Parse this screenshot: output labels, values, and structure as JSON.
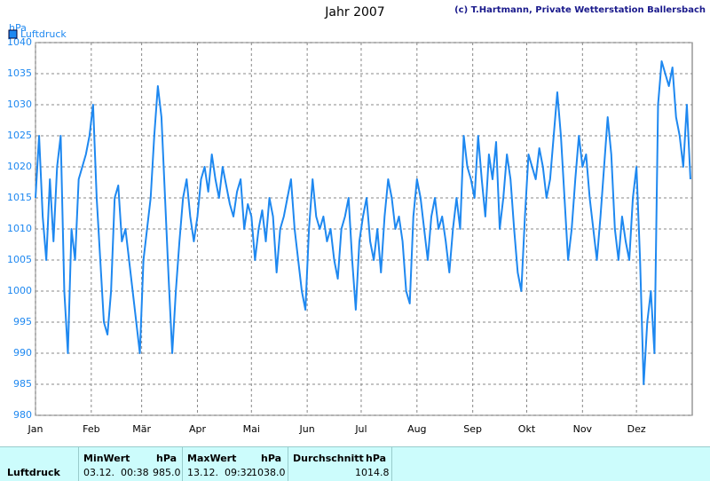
{
  "chart_data": {
    "type": "line",
    "title": "Jahr 2007",
    "credit": "(c) T.Hartmann, Private Wetterstation Ballersbach",
    "y_label": "hPa",
    "xlim": [
      1,
      366
    ],
    "xticks": [
      {
        "value": 1,
        "label": "Jan"
      },
      {
        "value": 32,
        "label": "Feb"
      },
      {
        "value": 60,
        "label": "Mär"
      },
      {
        "value": 91,
        "label": "Apr"
      },
      {
        "value": 121,
        "label": "Mai"
      },
      {
        "value": 152,
        "label": "Jun"
      },
      {
        "value": 182,
        "label": "Jul"
      },
      {
        "value": 213,
        "label": "Aug"
      },
      {
        "value": 244,
        "label": "Sep"
      },
      {
        "value": 274,
        "label": "Okt"
      },
      {
        "value": 305,
        "label": "Nov"
      },
      {
        "value": 335,
        "label": "Dez"
      }
    ],
    "ylim": [
      980,
      1040
    ],
    "yticks": [
      980,
      985,
      990,
      995,
      1000,
      1005,
      1010,
      1015,
      1020,
      1025,
      1030,
      1035,
      1040
    ],
    "grid": true,
    "legend": "top-left",
    "x": [
      1,
      3,
      5,
      7,
      9,
      11,
      13,
      15,
      17,
      19,
      21,
      23,
      25,
      27,
      29,
      31,
      33,
      35,
      37,
      39,
      41,
      43,
      45,
      47,
      49,
      51,
      53,
      55,
      57,
      59,
      61,
      63,
      65,
      67,
      69,
      71,
      73,
      75,
      77,
      79,
      81,
      83,
      85,
      87,
      89,
      91,
      93,
      95,
      97,
      99,
      101,
      103,
      105,
      107,
      109,
      111,
      113,
      115,
      117,
      119,
      121,
      123,
      125,
      127,
      129,
      131,
      133,
      135,
      137,
      139,
      141,
      143,
      145,
      147,
      149,
      151,
      153,
      155,
      157,
      159,
      161,
      163,
      165,
      167,
      169,
      171,
      173,
      175,
      177,
      179,
      181,
      183,
      185,
      187,
      189,
      191,
      193,
      195,
      197,
      199,
      201,
      203,
      205,
      207,
      209,
      211,
      213,
      215,
      217,
      219,
      221,
      223,
      225,
      227,
      229,
      231,
      233,
      235,
      237,
      239,
      241,
      243,
      245,
      247,
      249,
      251,
      253,
      255,
      257,
      259,
      261,
      263,
      265,
      267,
      269,
      271,
      273,
      275,
      277,
      279,
      281,
      283,
      285,
      287,
      289,
      291,
      293,
      295,
      297,
      299,
      301,
      303,
      305,
      307,
      309,
      311,
      313,
      315,
      317,
      319,
      321,
      323,
      325,
      327,
      329,
      331,
      333,
      335,
      337,
      339,
      341,
      343,
      345,
      347,
      349,
      351,
      353,
      355,
      357,
      359,
      361,
      363,
      365
    ],
    "series": [
      {
        "name": "Luftdruck",
        "color": "#1e88f0",
        "values": [
          1015,
          1025,
          1012,
          1005,
          1018,
          1008,
          1020,
          1025,
          1000,
          990,
          1010,
          1005,
          1018,
          1020,
          1022,
          1025,
          1030,
          1015,
          1005,
          995,
          993,
          1000,
          1015,
          1017,
          1008,
          1010,
          1005,
          1000,
          995,
          990,
          1005,
          1010,
          1015,
          1025,
          1033,
          1028,
          1015,
          1002,
          990,
          1000,
          1008,
          1015,
          1018,
          1012,
          1008,
          1012,
          1018,
          1020,
          1016,
          1022,
          1018,
          1015,
          1020,
          1017,
          1014,
          1012,
          1016,
          1018,
          1010,
          1014,
          1012,
          1005,
          1010,
          1013,
          1008,
          1015,
          1012,
          1003,
          1010,
          1012,
          1015,
          1018,
          1010,
          1005,
          1000,
          997,
          1010,
          1018,
          1012,
          1010,
          1012,
          1008,
          1010,
          1005,
          1002,
          1010,
          1012,
          1015,
          1005,
          997,
          1008,
          1012,
          1015,
          1008,
          1005,
          1010,
          1003,
          1012,
          1018,
          1015,
          1010,
          1012,
          1008,
          1000,
          998,
          1012,
          1018,
          1015,
          1010,
          1005,
          1012,
          1015,
          1010,
          1012,
          1008,
          1003,
          1010,
          1015,
          1010,
          1025,
          1020,
          1018,
          1015,
          1025,
          1018,
          1012,
          1022,
          1018,
          1024,
          1010,
          1015,
          1022,
          1018,
          1010,
          1003,
          1000,
          1012,
          1022,
          1020,
          1018,
          1023,
          1020,
          1015,
          1018,
          1025,
          1032,
          1025,
          1015,
          1005,
          1010,
          1018,
          1025,
          1020,
          1022,
          1015,
          1010,
          1005,
          1012,
          1020,
          1028,
          1022,
          1010,
          1005,
          1012,
          1008,
          1005,
          1015,
          1020,
          1005,
          985,
          995,
          1000,
          990,
          1030,
          1037,
          1035,
          1033,
          1036,
          1028,
          1025,
          1020,
          1030,
          1018
        ]
      }
    ]
  },
  "stats": {
    "row_label": "Luftdruck",
    "min": {
      "header": "MinWert",
      "unit": "hPa",
      "time": "03.12.  00:38",
      "value": "985.0"
    },
    "max": {
      "header": "MaxWert",
      "unit": "hPa",
      "time": "13.12.  09:32",
      "value": "1038.0"
    },
    "avg": {
      "header": "Durchschnitt",
      "unit": "hPa",
      "value": "1014.8"
    }
  }
}
